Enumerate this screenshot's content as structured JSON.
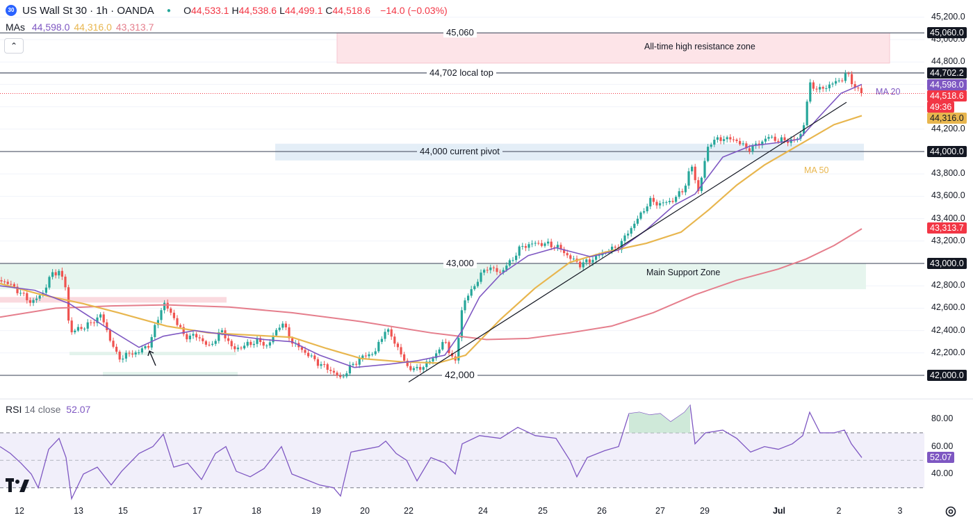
{
  "header": {
    "symbol_badge": "30",
    "title": "US Wall St 30 · 1h · OANDA",
    "ohlc": [
      {
        "label": "O",
        "value": "44,533.1"
      },
      {
        "label": "H",
        "value": "44,538.6"
      },
      {
        "label": "L",
        "value": "44,499.1"
      },
      {
        "label": "C",
        "value": "44,518.6"
      }
    ],
    "change": "−14.0 (−0.03%)",
    "mas_label": "MAs",
    "mas": [
      {
        "value": "44,598.0",
        "color": "#7e57c2"
      },
      {
        "value": "44,316.0",
        "color": "#e8b64e"
      },
      {
        "value": "43,313.7",
        "color": "#e57e8c"
      }
    ],
    "collapse_glyph": "⌃"
  },
  "rsi": {
    "label": "RSI",
    "params": "14 close",
    "value": "52.07",
    "ticks": [
      "80.00",
      "60.00",
      "40.00"
    ],
    "upper": 70,
    "lower": 30
  },
  "price_axis": {
    "ticks": [
      "45,200.0",
      "45,000.0",
      "44,800.0",
      "44,200.0",
      "43,800.0",
      "43,600.0",
      "43,400.0",
      "43,200.0",
      "42,800.0",
      "42,600.0",
      "42,400.0",
      "42,200.0"
    ],
    "tags": [
      {
        "text": "45,060.0",
        "bg": "#131722",
        "fg": "#ffffff",
        "price": 45060
      },
      {
        "text": "44,702.2",
        "bg": "#131722",
        "fg": "#ffffff",
        "price": 44702.2
      },
      {
        "text": "44,598.0",
        "bg": "#7e57c2",
        "fg": "#ffffff",
        "price": 44598
      },
      {
        "text": "44,518.6",
        "bg": "#f23645",
        "fg": "#ffffff",
        "price": 44518.6
      },
      {
        "text": "49:36",
        "bg": "#f23645",
        "fg": "#ffffff",
        "price": 44518.6
      },
      {
        "text": "44,316.0",
        "bg": "#e8b64e",
        "fg": "#131722",
        "price": 44316
      },
      {
        "text": "44,000.0",
        "bg": "#131722",
        "fg": "#ffffff",
        "price": 44000
      },
      {
        "text": "43,313.7",
        "bg": "#f23645",
        "fg": "#ffffff",
        "price": 43313.7
      },
      {
        "text": "43,000.0",
        "bg": "#131722",
        "fg": "#ffffff",
        "price": 43000
      },
      {
        "text": "42,000.0",
        "bg": "#131722",
        "fg": "#ffffff",
        "price": 42000
      }
    ]
  },
  "time_axis": [
    "12",
    "13",
    "15",
    "17",
    "18",
    "19",
    "20",
    "22",
    "24",
    "25",
    "26",
    "27",
    "29",
    "Jul",
    "2",
    "3"
  ],
  "annotations": {
    "level_45060": "45,060",
    "level_44702": "44,702 local top",
    "level_44000": "44,000 current pivot",
    "level_43000": "43,000",
    "level_42000": "42,000",
    "resistance_zone": "All-time high resistance zone",
    "support_zone": "Main Support Zone",
    "ma20_label": "MA 20",
    "ma50_label": "MA 50"
  },
  "colors": {
    "up": "#26a69a",
    "down": "#ef5350",
    "ma20": "#7e57c2",
    "ma50": "#e8b64e",
    "ma200": "#e57e8c",
    "rsi_line": "#7e57c2"
  },
  "chart_data": {
    "type": "candlestick",
    "title": "US Wall St 30 · 1h · OANDA",
    "ylim": [
      41920,
      45250
    ],
    "x_labels": [
      "12",
      "13",
      "15",
      "17",
      "18",
      "19",
      "20",
      "22",
      "24",
      "25",
      "26",
      "27",
      "29",
      "Jul",
      "2",
      "3"
    ],
    "price_path": [
      [
        0,
        42850
      ],
      [
        10,
        42830
      ],
      [
        25,
        42760
      ],
      [
        45,
        42650
      ],
      [
        60,
        42720
      ],
      [
        75,
        42910
      ],
      [
        85,
        42930
      ],
      [
        95,
        42780
      ],
      [
        100,
        42380
      ],
      [
        115,
        42420
      ],
      [
        130,
        42460
      ],
      [
        145,
        42540
      ],
      [
        160,
        42300
      ],
      [
        170,
        42150
      ],
      [
        185,
        42190
      ],
      [
        200,
        42210
      ],
      [
        215,
        42280
      ],
      [
        235,
        42650
      ],
      [
        250,
        42520
      ],
      [
        265,
        42350
      ],
      [
        285,
        42350
      ],
      [
        300,
        42250
      ],
      [
        320,
        42400
      ],
      [
        335,
        42230
      ],
      [
        350,
        42260
      ],
      [
        370,
        42310
      ],
      [
        385,
        42260
      ],
      [
        405,
        42480
      ],
      [
        420,
        42300
      ],
      [
        440,
        42200
      ],
      [
        460,
        42100
      ],
      [
        475,
        42050
      ],
      [
        490,
        41970
      ],
      [
        505,
        42080
      ],
      [
        520,
        42160
      ],
      [
        540,
        42210
      ],
      [
        555,
        42420
      ],
      [
        570,
        42280
      ],
      [
        585,
        42080
      ],
      [
        600,
        42050
      ],
      [
        620,
        42130
      ],
      [
        640,
        42310
      ],
      [
        655,
        42100
      ],
      [
        665,
        42620
      ],
      [
        680,
        42780
      ],
      [
        700,
        42970
      ],
      [
        720,
        42920
      ],
      [
        735,
        43020
      ],
      [
        750,
        43150
      ],
      [
        770,
        43180
      ],
      [
        790,
        43170
      ],
      [
        805,
        43140
      ],
      [
        820,
        43050
      ],
      [
        835,
        42990
      ],
      [
        850,
        43030
      ],
      [
        870,
        43100
      ],
      [
        890,
        43150
      ],
      [
        905,
        43290
      ],
      [
        920,
        43420
      ],
      [
        935,
        43560
      ],
      [
        950,
        43530
      ],
      [
        970,
        43570
      ],
      [
        985,
        43680
      ],
      [
        995,
        43880
      ],
      [
        1005,
        43640
      ],
      [
        1020,
        44080
      ],
      [
        1040,
        44120
      ],
      [
        1060,
        44100
      ],
      [
        1075,
        44020
      ],
      [
        1090,
        44060
      ],
      [
        1105,
        44130
      ],
      [
        1120,
        44100
      ],
      [
        1145,
        44100
      ],
      [
        1155,
        44180
      ],
      [
        1165,
        44600
      ],
      [
        1180,
        44550
      ],
      [
        1195,
        44600
      ],
      [
        1210,
        44640
      ],
      [
        1218,
        44700
      ],
      [
        1230,
        44580
      ],
      [
        1240,
        44519
      ]
    ],
    "ma20": [
      [
        0,
        42800
      ],
      [
        50,
        42760
      ],
      [
        100,
        42640
      ],
      [
        150,
        42440
      ],
      [
        200,
        42250
      ],
      [
        235,
        42350
      ],
      [
        280,
        42400
      ],
      [
        330,
        42360
      ],
      [
        380,
        42320
      ],
      [
        420,
        42300
      ],
      [
        460,
        42180
      ],
      [
        510,
        42070
      ],
      [
        560,
        42100
      ],
      [
        600,
        42130
      ],
      [
        640,
        42180
      ],
      [
        665,
        42400
      ],
      [
        690,
        42700
      ],
      [
        720,
        42900
      ],
      [
        760,
        43070
      ],
      [
        800,
        43140
      ],
      [
        850,
        43060
      ],
      [
        890,
        43120
      ],
      [
        930,
        43300
      ],
      [
        970,
        43520
      ],
      [
        1000,
        43620
      ],
      [
        1040,
        43950
      ],
      [
        1080,
        44050
      ],
      [
        1120,
        44080
      ],
      [
        1150,
        44110
      ],
      [
        1180,
        44320
      ],
      [
        1210,
        44520
      ],
      [
        1240,
        44600
      ]
    ],
    "ma50": [
      [
        0,
        42820
      ],
      [
        60,
        42720
      ],
      [
        120,
        42640
      ],
      [
        170,
        42560
      ],
      [
        240,
        42440
      ],
      [
        300,
        42380
      ],
      [
        360,
        42360
      ],
      [
        420,
        42340
      ],
      [
        470,
        42240
      ],
      [
        520,
        42150
      ],
      [
        580,
        42120
      ],
      [
        630,
        42110
      ],
      [
        670,
        42180
      ],
      [
        720,
        42500
      ],
      [
        770,
        42780
      ],
      [
        820,
        43010
      ],
      [
        870,
        43100
      ],
      [
        930,
        43180
      ],
      [
        980,
        43280
      ],
      [
        1020,
        43480
      ],
      [
        1060,
        43700
      ],
      [
        1100,
        43880
      ],
      [
        1150,
        44060
      ],
      [
        1200,
        44240
      ],
      [
        1240,
        44320
      ]
    ],
    "ma200": [
      [
        0,
        42520
      ],
      [
        80,
        42600
      ],
      [
        160,
        42620
      ],
      [
        240,
        42630
      ],
      [
        330,
        42610
      ],
      [
        420,
        42560
      ],
      [
        520,
        42480
      ],
      [
        620,
        42380
      ],
      [
        700,
        42320
      ],
      [
        760,
        42330
      ],
      [
        820,
        42380
      ],
      [
        880,
        42440
      ],
      [
        940,
        42560
      ],
      [
        1000,
        42720
      ],
      [
        1060,
        42850
      ],
      [
        1120,
        42950
      ],
      [
        1160,
        43040
      ],
      [
        1200,
        43160
      ],
      [
        1240,
        43310
      ]
    ],
    "trendline": [
      [
        588,
        41940
      ],
      [
        1218,
        44440
      ]
    ],
    "rsi": {
      "ylim": [
        20,
        90
      ],
      "path": [
        [
          0,
          60
        ],
        [
          15,
          55
        ],
        [
          30,
          48
        ],
        [
          45,
          40
        ],
        [
          55,
          30
        ],
        [
          70,
          58
        ],
        [
          85,
          66
        ],
        [
          95,
          52
        ],
        [
          103,
          22
        ],
        [
          120,
          40
        ],
        [
          140,
          45
        ],
        [
          160,
          32
        ],
        [
          175,
          42
        ],
        [
          200,
          55
        ],
        [
          220,
          60
        ],
        [
          235,
          69
        ],
        [
          250,
          45
        ],
        [
          270,
          48
        ],
        [
          290,
          36
        ],
        [
          310,
          55
        ],
        [
          325,
          60
        ],
        [
          340,
          42
        ],
        [
          360,
          38
        ],
        [
          380,
          44
        ],
        [
          405,
          60
        ],
        [
          420,
          40
        ],
        [
          440,
          36
        ],
        [
          460,
          32
        ],
        [
          480,
          30
        ],
        [
          490,
          24
        ],
        [
          505,
          56
        ],
        [
          525,
          58
        ],
        [
          545,
          60
        ],
        [
          555,
          64
        ],
        [
          570,
          55
        ],
        [
          585,
          50
        ],
        [
          600,
          35
        ],
        [
          620,
          52
        ],
        [
          640,
          48
        ],
        [
          655,
          40
        ],
        [
          665,
          62
        ],
        [
          690,
          68
        ],
        [
          720,
          66
        ],
        [
          745,
          74
        ],
        [
          770,
          68
        ],
        [
          800,
          66
        ],
        [
          820,
          50
        ],
        [
          830,
          38
        ],
        [
          845,
          52
        ],
        [
          870,
          57
        ],
        [
          890,
          60
        ],
        [
          905,
          84
        ],
        [
          920,
          85
        ],
        [
          935,
          83
        ],
        [
          950,
          84
        ],
        [
          965,
          78
        ],
        [
          985,
          85
        ],
        [
          993,
          90
        ],
        [
          1000,
          62
        ],
        [
          1015,
          70
        ],
        [
          1040,
          72
        ],
        [
          1060,
          66
        ],
        [
          1080,
          56
        ],
        [
          1100,
          60
        ],
        [
          1120,
          58
        ],
        [
          1140,
          62
        ],
        [
          1155,
          68
        ],
        [
          1165,
          85
        ],
        [
          1180,
          70
        ],
        [
          1200,
          70
        ],
        [
          1215,
          72
        ],
        [
          1225,
          62
        ],
        [
          1240,
          52
        ]
      ]
    }
  }
}
